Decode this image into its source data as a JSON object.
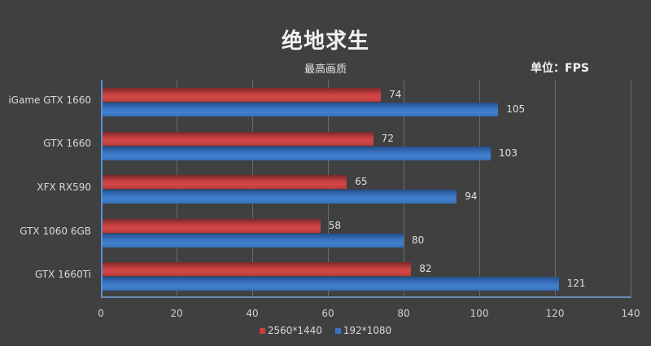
{
  "header": {
    "title": "绝地求生",
    "subtitle": "最高画质",
    "unit": "单位：FPS"
  },
  "colors": {
    "background": "#404040",
    "series_2560": "#c94040",
    "series_1080": "#3a74c4"
  },
  "chart_data": {
    "type": "bar",
    "orientation": "horizontal",
    "title": "绝地求生",
    "subtitle": "最高画质",
    "annotation": "单位：FPS",
    "categories": [
      "iGame GTX 1660",
      "GTX 1660",
      "XFX RX590",
      "GTX 1060 6GB",
      "GTX 1660Ti"
    ],
    "series": [
      {
        "name": "2560*1440",
        "color": "#c94040",
        "values": [
          74,
          72,
          65,
          58,
          82
        ]
      },
      {
        "name": "192*1080",
        "color": "#3a74c4",
        "values": [
          105,
          103,
          94,
          80,
          121
        ]
      }
    ],
    "xlabel": "",
    "ylabel": "",
    "xlim": [
      0,
      140
    ],
    "xticks": [
      0,
      20,
      40,
      60,
      80,
      100,
      120,
      140
    ],
    "grid": true,
    "legend_position": "bottom"
  },
  "axis": {
    "ticks": [
      "0",
      "20",
      "40",
      "60",
      "80",
      "100",
      "120",
      "140"
    ]
  },
  "legend": [
    {
      "label": "2560*1440"
    },
    {
      "label": "192*1080"
    }
  ]
}
